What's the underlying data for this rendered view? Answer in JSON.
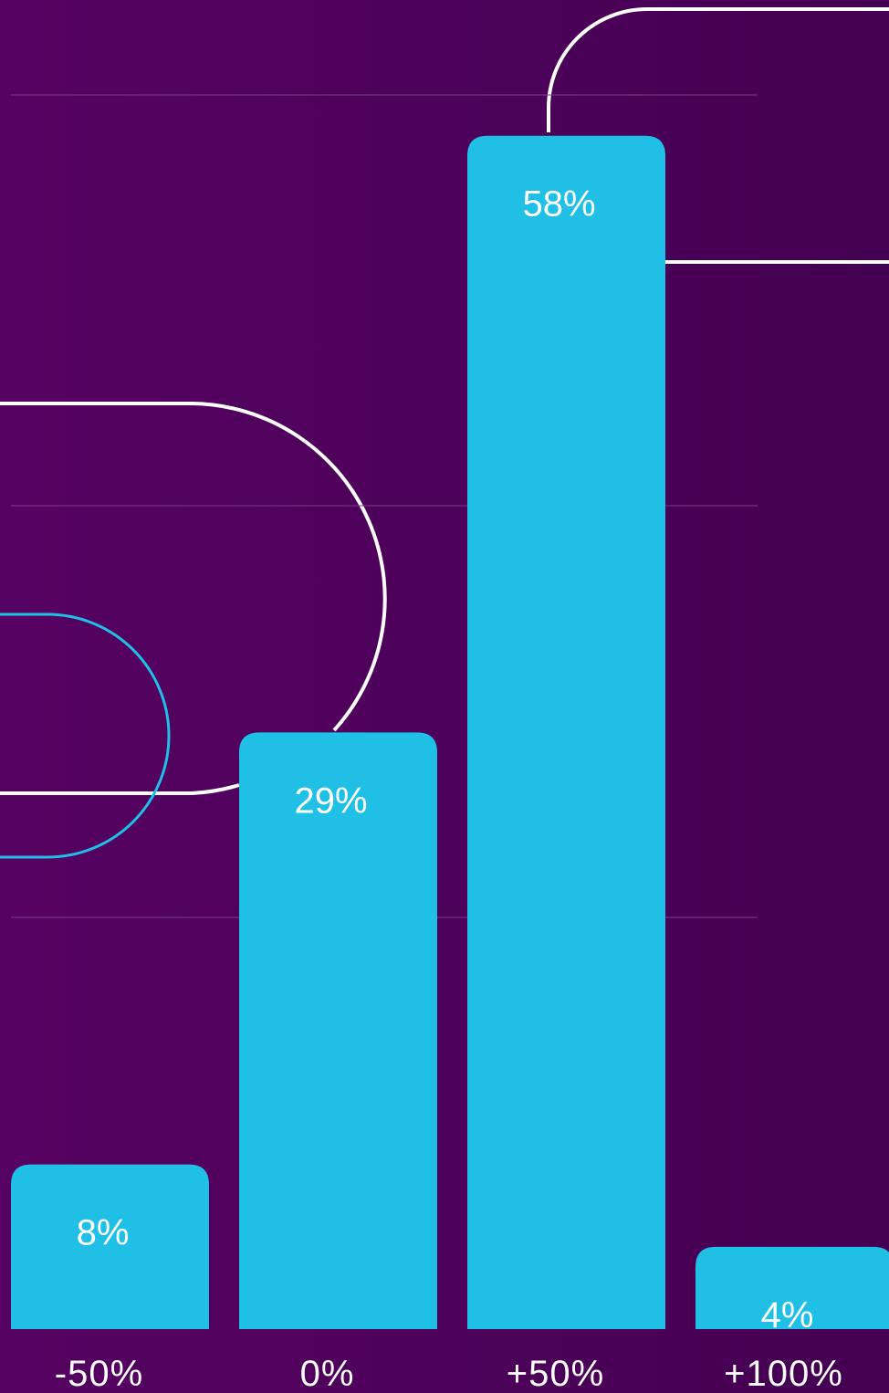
{
  "colors": {
    "background_start": "#560262",
    "background_end": "#440052",
    "bar": "#20C0E6",
    "text": "#FFFFFF",
    "gridline": "#7A3F86",
    "decor_white": "#FFFFFF",
    "decor_cyan": "#20C0E6"
  },
  "chart_data": {
    "type": "bar",
    "categories": [
      "-50%",
      "0%",
      "+50%",
      "+100%"
    ],
    "values": [
      8,
      29,
      58,
      4
    ],
    "value_labels": [
      "8%",
      "29%",
      "58%",
      "4%"
    ],
    "ylim": [
      0,
      63
    ],
    "gridlines_at": [
      20,
      40,
      60
    ],
    "grid": true,
    "legend": "none",
    "title": "",
    "xlabel": "",
    "ylabel": ""
  }
}
